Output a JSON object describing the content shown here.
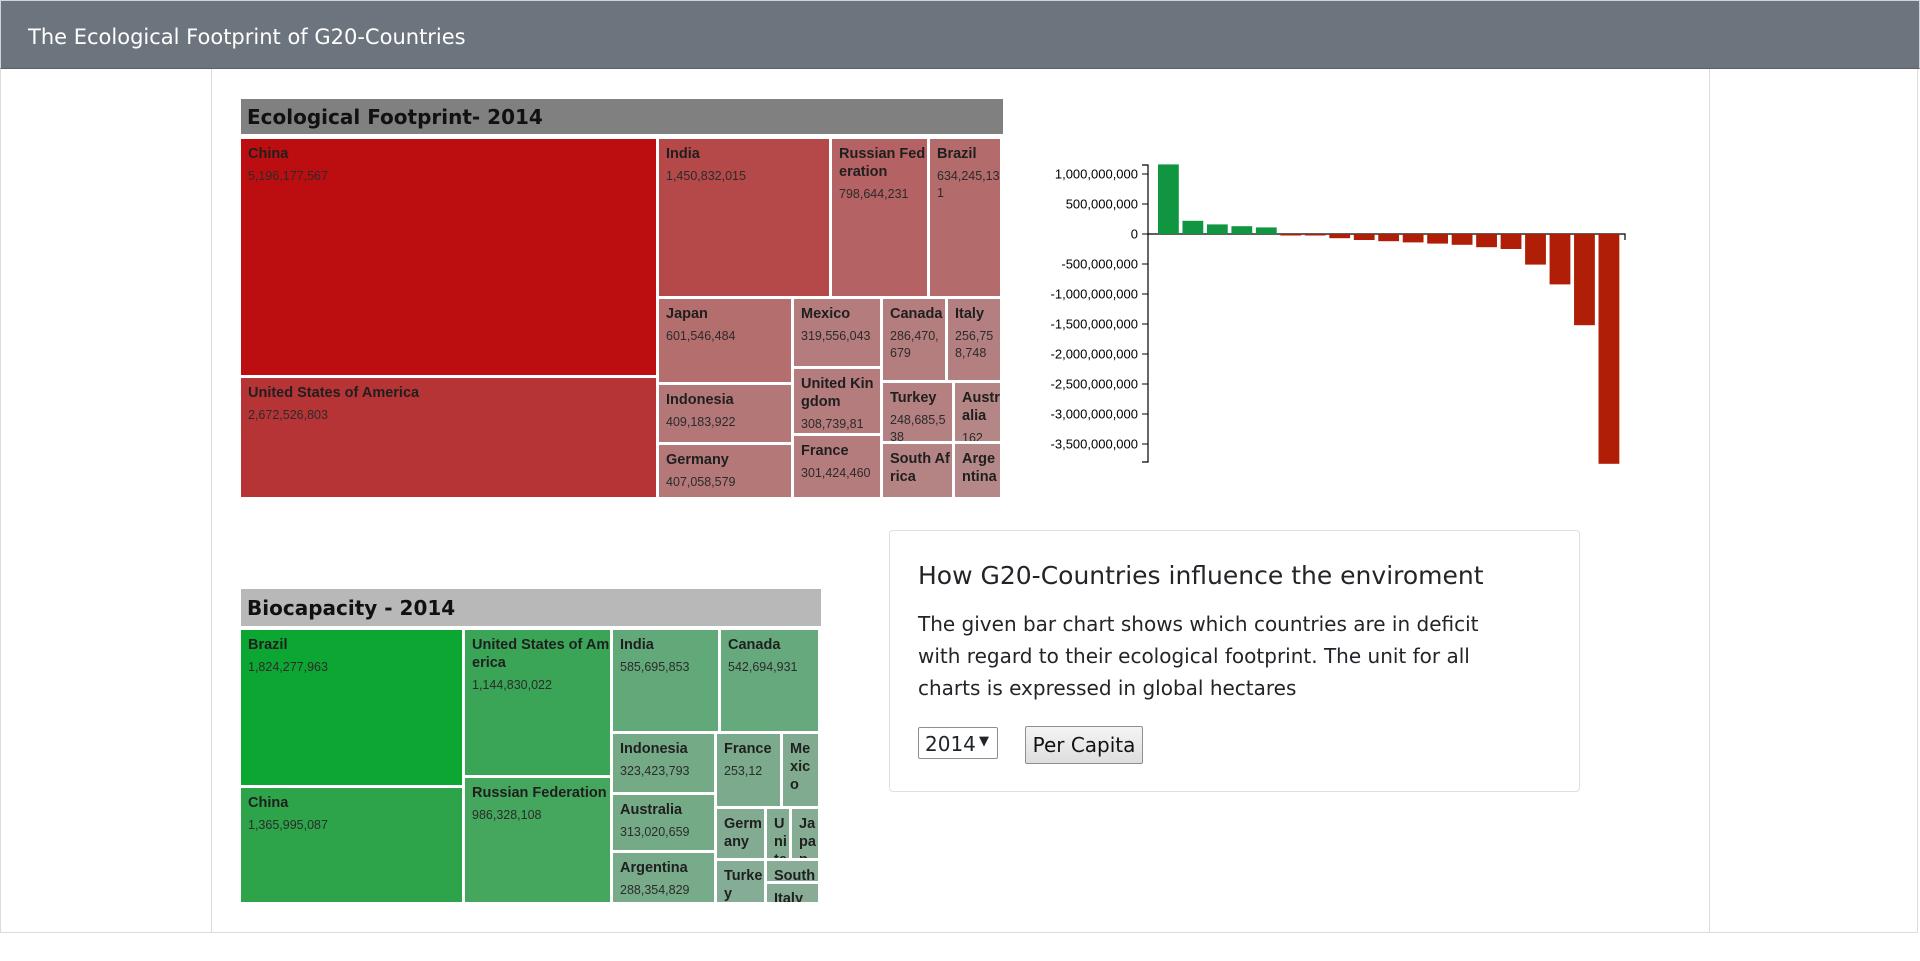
{
  "app": {
    "title": "The Ecological Footprint of G20-Countries"
  },
  "treemap_footprint": {
    "title": "Ecological Footprint- 2014",
    "header_color": "#808080",
    "tiles": [
      {
        "name": "China",
        "value": "5,196,177,567",
        "color": "#bc0e10"
      },
      {
        "name": "United States of America",
        "value": "2,672,526,803",
        "color": "#b73436"
      },
      {
        "name": "India",
        "value": "1,450,832,015",
        "color": "#b54848"
      },
      {
        "name": "Russian Federation",
        "value": "798,644,231",
        "color": "#b46263"
      },
      {
        "name": "Brazil",
        "value": "634,245,131",
        "color": "#b46b6c"
      },
      {
        "name": "Japan",
        "value": "601,546,484",
        "color": "#b46e6e"
      },
      {
        "name": "Mexico",
        "value": "319,556,043",
        "color": "#b47c7d"
      },
      {
        "name": "Canada",
        "value": "286,470,679",
        "color": "#b47d7e"
      },
      {
        "name": "Italy",
        "value": "256,758,748",
        "color": "#b47f80"
      },
      {
        "name": "United Kingdom",
        "value": "308,739,81",
        "color": "#b47c7d"
      },
      {
        "name": "Indonesia",
        "value": "409,183,922",
        "color": "#b47778"
      },
      {
        "name": "Turkey",
        "value": "248,685,538",
        "color": "#b48081"
      },
      {
        "name": "Australia",
        "value": "162",
        "color": "#b48686"
      },
      {
        "name": "Germany",
        "value": "407,058,579",
        "color": "#b47879"
      },
      {
        "name": "France",
        "value": "301,424,460",
        "color": "#b47c7d"
      },
      {
        "name": "South Africa",
        "value": "",
        "color": "#b48485"
      },
      {
        "name": "Argentina",
        "value": "",
        "color": "#b48788"
      }
    ]
  },
  "treemap_biocapacity": {
    "title": "Biocapacity - 2014",
    "header_color": "#b8b8b8",
    "tiles": [
      {
        "name": "Brazil",
        "value": "1,824,277,963",
        "color": "#0ca632"
      },
      {
        "name": "China",
        "value": "1,365,995,087",
        "color": "#2ea44a"
      },
      {
        "name": "United States of America",
        "value": "1,144,830,022",
        "color": "#3aa556"
      },
      {
        "name": "Russian Federation",
        "value": "986,328,108",
        "color": "#45a75e"
      },
      {
        "name": "India",
        "value": "585,695,853",
        "color": "#62a979"
      },
      {
        "name": "Canada",
        "value": "542,694,931",
        "color": "#66a97c"
      },
      {
        "name": "Indonesia",
        "value": "323,423,793",
        "color": "#74aa86"
      },
      {
        "name": "Australia",
        "value": "313,020,659",
        "color": "#75aa87"
      },
      {
        "name": "Argentina",
        "value": "288,354,829",
        "color": "#78ab8a"
      },
      {
        "name": "France",
        "value": "253,12",
        "color": "#7bab8c"
      },
      {
        "name": "Mexico",
        "value": "",
        "color": "#80ab90"
      },
      {
        "name": "Germany",
        "value": "",
        "color": "#82ab92"
      },
      {
        "name": "United Kingdom",
        "value": "",
        "color": "#84ac93"
      },
      {
        "name": "Japan",
        "value": "",
        "color": "#86ac94"
      },
      {
        "name": "Turkey",
        "value": "",
        "color": "#85ac94"
      },
      {
        "name": "South Africa",
        "value": "",
        "color": "#88ac95"
      },
      {
        "name": "Italy",
        "value": "",
        "color": "#88ac95"
      }
    ]
  },
  "chart_data": [
    {
      "type": "bar",
      "title": "",
      "xlabel": "",
      "ylabel": "",
      "ylim": [
        -3800000000,
        1200000000
      ],
      "yticks": [
        1000000000,
        500000000,
        0,
        -500000000,
        -1000000000,
        -1500000000,
        -2000000000,
        -2500000000,
        -3000000000,
        -3500000000
      ],
      "ytick_labels": [
        "1,000,000,000",
        "500,000,000",
        "0",
        "-500,000,000",
        "-1,000,000,000",
        "-1,500,000,000",
        "-2,000,000,000",
        "-2,500,000,000",
        "-3,000,000,000",
        "-3,500,000,000"
      ],
      "values": [
        1160000000,
        220000000,
        160000000,
        130000000,
        110000000,
        -10000000,
        -20000000,
        -70000000,
        -100000000,
        -120000000,
        -140000000,
        -160000000,
        -180000000,
        -220000000,
        -250000000,
        -510000000,
        -840000000,
        -1520000000,
        -3830000000
      ],
      "positive_color": "#109541",
      "negative_color": "#b01e07"
    }
  ],
  "info_card": {
    "heading": "How G20-Countries influence the enviroment",
    "text": "The given bar chart shows which countries are in deficit with regard to their ecological footprint. The unit for all charts is expressed in global hectares",
    "year_select": "2014",
    "button_label": "Per Capita"
  }
}
